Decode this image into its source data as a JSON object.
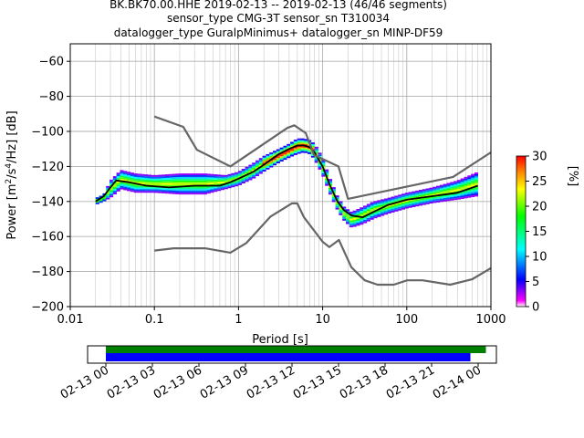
{
  "figure": {
    "title_lines": [
      "BK.BK70.00.HHE   2019-02-13 -- 2019-02-13  (46/46 segments)",
      "sensor_type CMG-3T sensor_sn T310034",
      "datalogger_type GuralpMinimus+ datalogger_sn MINP-DF59"
    ]
  },
  "chart_data": [
    {
      "type": "heatmap",
      "name": "ppsd",
      "title": "",
      "xlabel": "Period [s]",
      "ylabel": "Power [m²/s⁴/Hz] [dB]",
      "xscale": "log",
      "xlim": [
        0.01,
        1000
      ],
      "ylim": [
        -200,
        -50
      ],
      "xticks": [
        0.01,
        0.1,
        1,
        10,
        100,
        1000
      ],
      "xtick_labels": [
        "0.01",
        "0.1",
        "1",
        "10",
        "100",
        "1000"
      ],
      "yticks": [
        -200,
        -180,
        -160,
        -140,
        -120,
        -100,
        -80,
        -60
      ],
      "ytick_labels": [
        "−200",
        "−180",
        "−160",
        "−140",
        "−120",
        "−100",
        "−80",
        "−60"
      ],
      "grid": true,
      "colorbar": {
        "label": "[%]",
        "range": [
          0,
          30
        ],
        "ticks": [
          0,
          5,
          10,
          15,
          20,
          25,
          30
        ],
        "colormap": [
          "#ffffff",
          "#ff00ff",
          "#0000ff",
          "#00ffff",
          "#00ff00",
          "#ffff00",
          "#ff7f00",
          "#ff0000"
        ]
      },
      "density_band": {
        "description_free": true,
        "period": [
          0.02,
          0.025,
          0.03,
          0.04,
          0.06,
          0.1,
          0.2,
          0.4,
          0.7,
          1,
          1.5,
          2,
          3,
          4,
          5,
          6,
          7,
          8,
          10,
          12,
          15,
          18,
          22,
          30,
          40,
          60,
          100,
          200,
          400,
          700
        ],
        "lower_db": [
          -142,
          -140,
          -138,
          -133,
          -135,
          -135,
          -136,
          -136,
          -133,
          -131,
          -127,
          -123,
          -118,
          -115,
          -113,
          -112,
          -113,
          -116,
          -125,
          -135,
          -145,
          -151,
          -155,
          -153,
          -150,
          -147,
          -144,
          -141,
          -139,
          -137
        ],
        "upper_db": [
          -138,
          -136,
          -128,
          -122,
          -124,
          -125,
          -124,
          -124,
          -125,
          -123,
          -118,
          -114,
          -110,
          -107,
          -104,
          -104,
          -105,
          -107,
          -115,
          -126,
          -137,
          -143,
          -146,
          -143,
          -140,
          -138,
          -135,
          -132,
          -128,
          -123
        ],
        "peak_percent": 30
      },
      "series": [
        {
          "name": "mean",
          "color": "#000000",
          "period": [
            0.02,
            0.025,
            0.03,
            0.035,
            0.05,
            0.08,
            0.15,
            0.3,
            0.6,
            0.8,
            1,
            1.5,
            2,
            3,
            4,
            5,
            6,
            7,
            8,
            10,
            12,
            15,
            18,
            22,
            30,
            40,
            60,
            100,
            200,
            400,
            700
          ],
          "db": [
            -140,
            -137,
            -132,
            -128,
            -129,
            -131,
            -132,
            -131,
            -131,
            -129,
            -127,
            -123,
            -119,
            -113,
            -110,
            -108,
            -108,
            -109,
            -112,
            -120,
            -130,
            -140,
            -145,
            -148,
            -149,
            -146,
            -142,
            -139,
            -137,
            -135,
            -131
          ]
        },
        {
          "name": "nhnm",
          "color": "#666666",
          "period": [
            0.1,
            0.22,
            0.32,
            0.8,
            3.8,
            4.6,
            6.3,
            7.9,
            15.4,
            20,
            354.8,
            1000
          ],
          "db": [
            -91.5,
            -97.4,
            -110.5,
            -120,
            -98,
            -96.5,
            -101,
            -113.5,
            -120,
            -138.5,
            -126,
            -112
          ]
        },
        {
          "name": "nlnm",
          "color": "#666666",
          "period": [
            0.1,
            0.17,
            0.4,
            0.8,
            1.24,
            2.4,
            4.3,
            5,
            6,
            10,
            12,
            15.6,
            21.9,
            31.6,
            45,
            70,
            101,
            154,
            328,
            600,
            1000
          ],
          "db": [
            -168,
            -166.7,
            -166.7,
            -169.2,
            -163.7,
            -148.6,
            -141.1,
            -141.1,
            -149,
            -163,
            -166,
            -162,
            -177.5,
            -185,
            -187.5,
            -187.5,
            -185,
            -185,
            -187.5,
            -184.4,
            -178
          ]
        }
      ]
    },
    {
      "type": "bar",
      "name": "data-coverage",
      "x_start": "2019-02-13 00:00",
      "x_end": "2019-02-14 00:00",
      "xlim_hours": [
        0,
        25.2
      ],
      "xticks_hours": [
        0,
        3,
        6,
        9,
        12,
        15,
        18,
        21,
        24
      ],
      "xtick_labels": [
        "02-13 00",
        "02-13 03",
        "02-13 06",
        "02-13 09",
        "02-13 12",
        "02-13 15",
        "02-13 18",
        "02-13 21",
        "02-14 00"
      ],
      "series": [
        {
          "color": "#008000",
          "start_hour": 0,
          "end_hour": 24.5
        },
        {
          "color": "#0000ff",
          "start_hour": 0,
          "end_hour": 23.5
        }
      ]
    }
  ]
}
